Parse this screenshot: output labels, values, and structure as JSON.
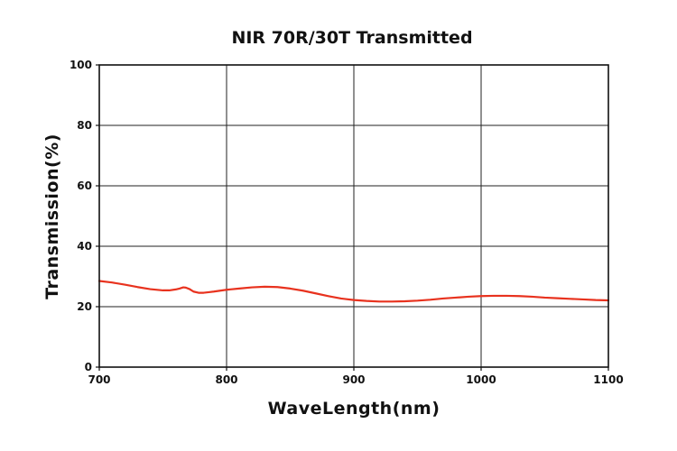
{
  "chart_data": {
    "type": "line",
    "title": "NIR 70R/30T Transmitted",
    "xlabel": "WaveLength(nm)",
    "ylabel": "Transmission(%)",
    "xlim": [
      700,
      1100
    ],
    "ylim": [
      0,
      100
    ],
    "x_ticks": [
      700,
      800,
      900,
      1000,
      1100
    ],
    "y_ticks": [
      0,
      20,
      40,
      60,
      80,
      100
    ],
    "x_tick_labels": [
      "700",
      "800",
      "900",
      "1000",
      "1100"
    ],
    "y_tick_labels": [
      "0",
      "20",
      "40",
      "60",
      "80",
      "100"
    ],
    "grid": true,
    "legend": "none",
    "series": [
      {
        "color": "#e8321e",
        "x": [
          700,
          710,
          720,
          730,
          740,
          750,
          755,
          760,
          763,
          766,
          768,
          771,
          774,
          778,
          782,
          786,
          790,
          800,
          810,
          820,
          830,
          840,
          850,
          860,
          870,
          880,
          890,
          900,
          910,
          920,
          930,
          940,
          950,
          960,
          970,
          980,
          990,
          1000,
          1010,
          1020,
          1030,
          1040,
          1050,
          1060,
          1070,
          1080,
          1090,
          1100
        ],
        "y": [
          28.5,
          28.0,
          27.3,
          26.5,
          25.8,
          25.4,
          25.4,
          25.7,
          26.0,
          26.4,
          26.3,
          25.8,
          25.0,
          24.6,
          24.6,
          24.8,
          25.0,
          25.6,
          26.0,
          26.4,
          26.6,
          26.5,
          26.0,
          25.3,
          24.4,
          23.5,
          22.7,
          22.2,
          21.9,
          21.7,
          21.7,
          21.8,
          22.0,
          22.3,
          22.7,
          23.0,
          23.3,
          23.5,
          23.6,
          23.6,
          23.5,
          23.3,
          23.0,
          22.8,
          22.6,
          22.4,
          22.2,
          22.1
        ]
      }
    ]
  }
}
